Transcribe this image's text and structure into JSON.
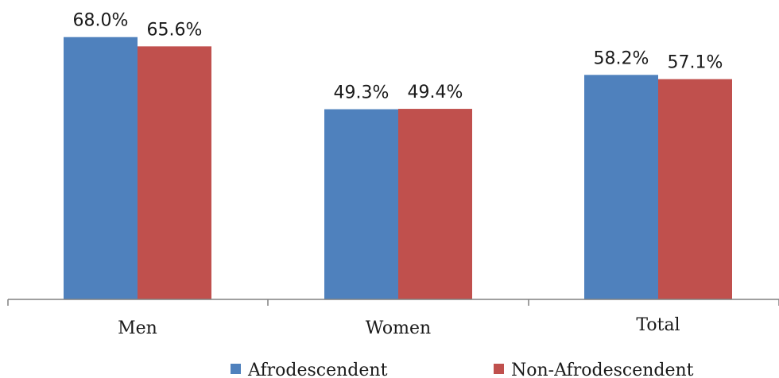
{
  "chart_data": {
    "type": "bar",
    "categories": [
      "Men",
      "Women",
      "Total"
    ],
    "series": [
      {
        "name": "Afrodescendent",
        "color": "#4f81bd",
        "values": [
          68.0,
          49.3,
          58.2
        ],
        "labels": [
          "68.0%",
          "49.3%",
          "58.2%"
        ]
      },
      {
        "name": "Non-Afrodescendent",
        "color": "#c0504d",
        "values": [
          65.6,
          49.4,
          57.1
        ],
        "labels": [
          "65.6%",
          "49.4%",
          "57.1%"
        ]
      }
    ],
    "ylim": [
      0,
      70
    ],
    "grid": false,
    "legend_position": "bottom"
  }
}
